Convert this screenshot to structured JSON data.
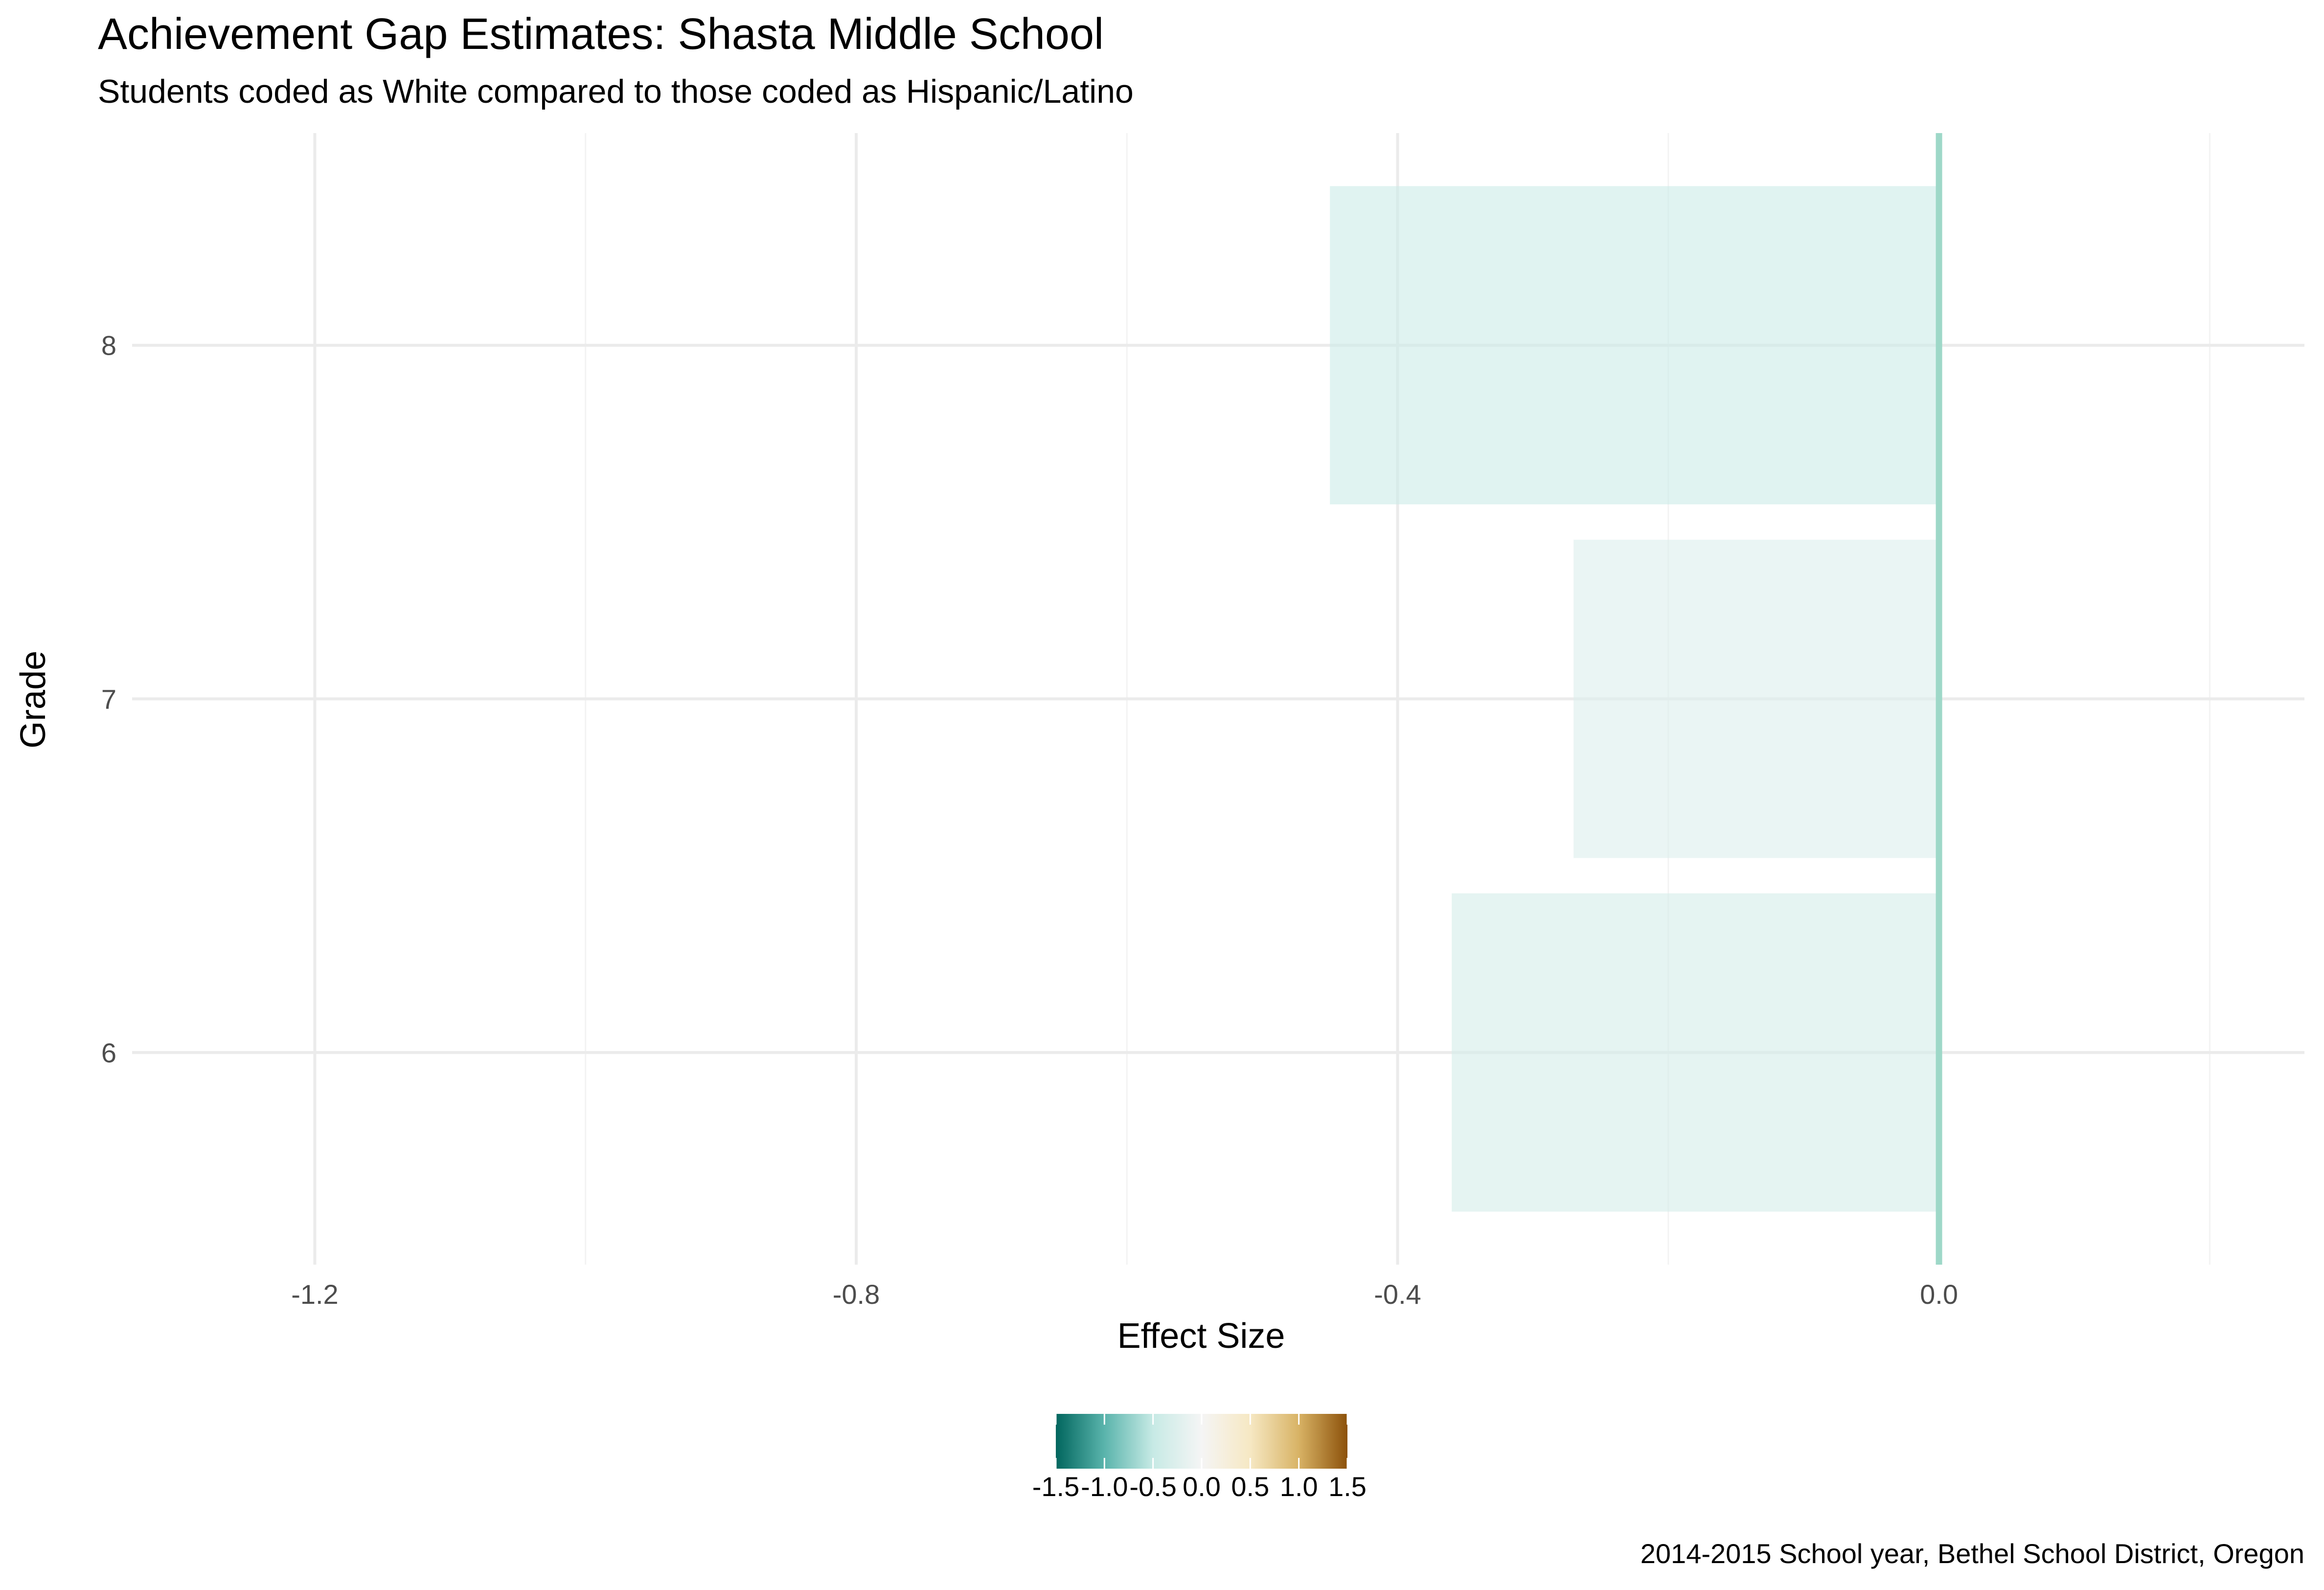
{
  "chart_data": {
    "type": "bar",
    "orientation": "horizontal",
    "title": "Achievement Gap Estimates: Shasta Middle School",
    "subtitle": "Students coded as White compared to those coded as Hispanic/Latino",
    "xlabel": "Effect Size",
    "ylabel": "Grade",
    "caption": "2014-2015 School year, Bethel School District, Oregon",
    "categories": [
      "6",
      "7",
      "8"
    ],
    "values": [
      -0.36,
      -0.27,
      -0.45
    ],
    "xlim": [
      -1.335,
      0.27
    ],
    "x_ticks": [
      -1.2,
      -0.8,
      -0.4,
      0.0
    ],
    "x_tick_labels": [
      "-1.2",
      "-0.8",
      "-0.4",
      "0.0"
    ],
    "reference_line": 0.0,
    "grid": true,
    "legend": {
      "type": "colorbar",
      "position": "bottom",
      "range": [
        -1.5,
        1.5
      ],
      "ticks": [
        -1.5,
        -1.0,
        -0.5,
        0.0,
        0.5,
        1.0,
        1.5
      ],
      "tick_labels": [
        "-1.5",
        "-1.0",
        "-0.5",
        "0.0",
        "0.5",
        "1.0",
        "1.5"
      ],
      "palette": [
        "#01665e",
        "#5ab4ac",
        "#c7eae5",
        "#f5f5f5",
        "#f6e8c3",
        "#d8b365",
        "#8c510a"
      ]
    },
    "colors": {
      "grid_major": "#ebebeb",
      "grid_minor": "#f3f3f3",
      "zero_line": "#9ed8c8",
      "bar_opacity": 0.6
    }
  }
}
